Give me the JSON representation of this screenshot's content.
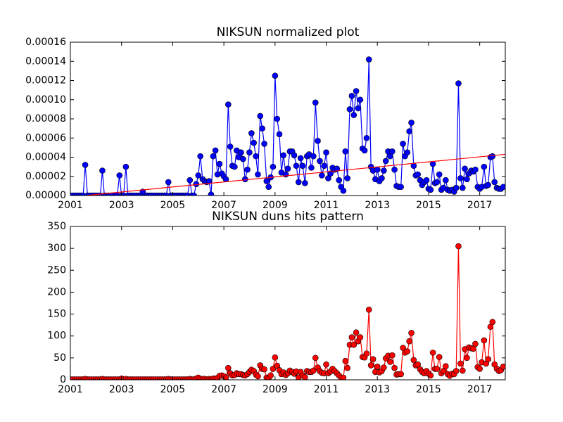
{
  "chart_data": [
    {
      "type": "line",
      "title": "NIKSUN normalized plot",
      "xlim": [
        2001,
        2018
      ],
      "xticks": [
        2001,
        2003,
        2005,
        2007,
        2009,
        2011,
        2013,
        2015,
        2017
      ],
      "ylim": [
        0,
        0.00016
      ],
      "yticks": [
        {
          "value": 0,
          "label": "0.00000"
        },
        {
          "value": 2e-05,
          "label": "0.00002"
        },
        {
          "value": 4e-05,
          "label": "0.00004"
        },
        {
          "value": 6e-05,
          "label": "0.00006"
        },
        {
          "value": 8e-05,
          "label": "0.00008"
        },
        {
          "value": 0.0001,
          "label": "0.00010"
        },
        {
          "value": 0.00012,
          "label": "0.00012"
        },
        {
          "value": 0.00014,
          "label": "0.00014"
        },
        {
          "value": 0.00016,
          "label": "0.00016"
        }
      ],
      "series": [
        {
          "color": "#0000ff",
          "marker": "o",
          "x": [
            2001,
            2001.08,
            2001.17,
            2001.25,
            2001.33,
            2001.42,
            2001.5,
            2001.58,
            2001.67,
            2001.75,
            2001.83,
            2001.92,
            2002,
            2002.08,
            2002.17,
            2002.25,
            2002.33,
            2002.42,
            2002.5,
            2002.58,
            2002.67,
            2002.75,
            2002.83,
            2002.92,
            2003,
            2003.08,
            2003.17,
            2003.25,
            2003.33,
            2003.42,
            2003.5,
            2003.58,
            2003.67,
            2003.75,
            2003.83,
            2003.92,
            2004,
            2004.08,
            2004.17,
            2004.25,
            2004.33,
            2004.42,
            2004.5,
            2004.58,
            2004.67,
            2004.75,
            2004.83,
            2004.92,
            2005,
            2005.08,
            2005.17,
            2005.25,
            2005.33,
            2005.42,
            2005.5,
            2005.58,
            2005.67,
            2005.75,
            2005.83,
            2005.92,
            2006,
            2006.08,
            2006.17,
            2006.25,
            2006.33,
            2006.42,
            2006.5,
            2006.58,
            2006.67,
            2006.75,
            2006.83,
            2006.92,
            2007,
            2007.08,
            2007.17,
            2007.25,
            2007.33,
            2007.42,
            2007.5,
            2007.58,
            2007.67,
            2007.75,
            2007.83,
            2007.92,
            2008,
            2008.08,
            2008.17,
            2008.25,
            2008.33,
            2008.42,
            2008.5,
            2008.58,
            2008.67,
            2008.75,
            2008.83,
            2008.92,
            2009,
            2009.08,
            2009.17,
            2009.25,
            2009.33,
            2009.42,
            2009.5,
            2009.58,
            2009.67,
            2009.75,
            2009.83,
            2009.92,
            2010,
            2010.08,
            2010.17,
            2010.25,
            2010.33,
            2010.42,
            2010.5,
            2010.58,
            2010.67,
            2010.75,
            2010.83,
            2010.92,
            2011,
            2011.08,
            2011.17,
            2011.25,
            2011.33,
            2011.42,
            2011.5,
            2011.58,
            2011.67,
            2011.75,
            2011.83,
            2011.92,
            2012,
            2012.08,
            2012.17,
            2012.25,
            2012.33,
            2012.42,
            2012.5,
            2012.58,
            2012.67,
            2012.75,
            2012.83,
            2012.92,
            2013,
            2013.08,
            2013.17,
            2013.25,
            2013.33,
            2013.42,
            2013.5,
            2013.58,
            2013.67,
            2013.75,
            2013.83,
            2013.92,
            2014,
            2014.08,
            2014.17,
            2014.25,
            2014.33,
            2014.42,
            2014.5,
            2014.58,
            2014.67,
            2014.75,
            2014.83,
            2014.92,
            2015,
            2015.08,
            2015.17,
            2015.25,
            2015.33,
            2015.42,
            2015.5,
            2015.58,
            2015.67,
            2015.75,
            2015.83,
            2015.92,
            2016,
            2016.08,
            2016.17,
            2016.25,
            2016.33,
            2016.42,
            2016.5,
            2016.58,
            2016.67,
            2016.75,
            2016.83,
            2016.92,
            2017,
            2017.08,
            2017.17,
            2017.25,
            2017.33,
            2017.42,
            2017.5,
            2017.58,
            2017.67,
            2017.75,
            2017.83,
            2017.92
          ],
          "values": [
            0,
            0,
            0,
            0,
            0,
            0,
            0,
            3.2e-05,
            0,
            0,
            0,
            0,
            0,
            0,
            0,
            2.6e-05,
            0,
            0,
            0,
            0,
            0,
            0,
            0,
            2.1e-05,
            0,
            0,
            3e-05,
            0,
            0,
            0,
            0,
            0,
            0,
            0,
            4e-06,
            0,
            0,
            0,
            0,
            0,
            0,
            0,
            0,
            0,
            0,
            0,
            1.4e-05,
            0,
            0,
            0,
            0,
            0,
            0,
            0,
            0,
            0,
            1.6e-05,
            0,
            0,
            1.2e-05,
            2.1e-05,
            4.1e-05,
            1.7e-05,
            1.5e-05,
            1.4e-05,
            1.5e-05,
            1e-06,
            4.1e-05,
            4.7e-05,
            2.2e-05,
            3.3e-05,
            2.3e-05,
            2e-05,
            1.7e-05,
            9.5e-05,
            5.1e-05,
            3.1e-05,
            3e-05,
            4.7e-05,
            4e-05,
            4.5e-05,
            3.8e-05,
            1.7e-05,
            2.7e-05,
            4.5e-05,
            6.5e-05,
            5.5e-05,
            4.1e-05,
            2.2e-05,
            8.3e-05,
            7e-05,
            5.4e-05,
            1.5e-05,
            9e-06,
            1.9e-05,
            3e-05,
            0.000125,
            8e-05,
            6.4e-05,
            2.4e-05,
            4.2e-05,
            2.2e-05,
            2.8e-05,
            4.6e-05,
            4.6e-05,
            4.2e-05,
            3.1e-05,
            1.4e-05,
            3.9e-05,
            3.1e-05,
            1.3e-05,
            4.1e-05,
            4.3e-05,
            2.9e-05,
            4.1e-05,
            9.7e-05,
            5.7e-05,
            3.6e-05,
            2.1e-05,
            3.1e-05,
            4.5e-05,
            1.8e-05,
            2.3e-05,
            2.9e-05,
            2.7e-05,
            2.8e-05,
            1.6e-05,
            9e-06,
            5e-06,
            4.6e-05,
            1.8e-05,
            9e-05,
            0.000104,
            8.4e-05,
            0.000109,
            9.1e-05,
            0.0001,
            4.9e-05,
            4.7e-05,
            6e-05,
            0.000142,
            3e-05,
            2.6e-05,
            1.7e-05,
            2.7e-05,
            1.5e-05,
            1.8e-05,
            2.6e-05,
            3.6e-05,
            4.6e-05,
            4.1e-05,
            4.6e-05,
            2.7e-05,
            1e-05,
            9e-06,
            9e-06,
            5.4e-05,
            4.1e-05,
            4.5e-05,
            6.7e-05,
            7.6e-05,
            3.1e-05,
            2.1e-05,
            2.2e-05,
            1.6e-05,
            1.1e-05,
            1.4e-05,
            1.6e-05,
            7e-06,
            6e-06,
            3.3e-05,
            1.3e-05,
            1.4e-05,
            2.2e-05,
            6e-06,
            8e-06,
            1.6e-05,
            6e-06,
            5e-06,
            6e-06,
            4e-06,
            8e-06,
            0.000117,
            1.8e-05,
            8e-06,
            2.8e-05,
            1.7e-05,
            2.3e-05,
            2.6e-05,
            2.5e-05,
            2.7e-05,
            9e-06,
            7e-06,
            9e-06,
            3e-05,
            1e-05,
            1.1e-05,
            4e-05,
            4.1e-05,
            1.4e-05,
            8e-06,
            7e-06,
            7e-06,
            9e-06
          ]
        },
        {
          "color": "#ff0000",
          "x": [
            2001.6,
            2018
          ],
          "values": [
            0,
            4.3e-05
          ]
        }
      ]
    },
    {
      "type": "line",
      "title": "NIKSUN duns hits pattern",
      "xlim": [
        2001,
        2018
      ],
      "xticks": [
        2001,
        2003,
        2005,
        2007,
        2009,
        2011,
        2013,
        2015,
        2017
      ],
      "ylim": [
        0,
        350
      ],
      "yticks": [
        0,
        50,
        100,
        150,
        200,
        250,
        300,
        350
      ],
      "series": [
        {
          "color": "#ff0000",
          "marker": "o",
          "x": [
            2001,
            2001.08,
            2001.17,
            2001.25,
            2001.33,
            2001.42,
            2001.5,
            2001.58,
            2001.67,
            2001.75,
            2001.83,
            2001.92,
            2002,
            2002.08,
            2002.17,
            2002.25,
            2002.33,
            2002.42,
            2002.5,
            2002.58,
            2002.67,
            2002.75,
            2002.83,
            2002.92,
            2003,
            2003.08,
            2003.17,
            2003.25,
            2003.33,
            2003.42,
            2003.5,
            2003.58,
            2003.67,
            2003.75,
            2003.83,
            2003.92,
            2004,
            2004.08,
            2004.17,
            2004.25,
            2004.33,
            2004.42,
            2004.5,
            2004.58,
            2004.67,
            2004.75,
            2004.83,
            2004.92,
            2005,
            2005.08,
            2005.17,
            2005.25,
            2005.33,
            2005.42,
            2005.5,
            2005.58,
            2005.67,
            2005.75,
            2005.83,
            2005.92,
            2006,
            2006.08,
            2006.17,
            2006.25,
            2006.33,
            2006.42,
            2006.5,
            2006.58,
            2006.67,
            2006.75,
            2006.83,
            2006.92,
            2007,
            2007.08,
            2007.17,
            2007.25,
            2007.33,
            2007.42,
            2007.5,
            2007.58,
            2007.67,
            2007.75,
            2007.83,
            2007.92,
            2008,
            2008.08,
            2008.17,
            2008.25,
            2008.33,
            2008.42,
            2008.5,
            2008.58,
            2008.67,
            2008.75,
            2008.83,
            2008.92,
            2009,
            2009.08,
            2009.17,
            2009.25,
            2009.33,
            2009.42,
            2009.5,
            2009.58,
            2009.67,
            2009.75,
            2009.83,
            2009.92,
            2010,
            2010.08,
            2010.17,
            2010.25,
            2010.33,
            2010.42,
            2010.5,
            2010.58,
            2010.67,
            2010.75,
            2010.83,
            2010.92,
            2011,
            2011.08,
            2011.17,
            2011.25,
            2011.33,
            2011.42,
            2011.5,
            2011.58,
            2011.67,
            2011.75,
            2011.83,
            2011.92,
            2012,
            2012.08,
            2012.17,
            2012.25,
            2012.33,
            2012.42,
            2012.5,
            2012.58,
            2012.67,
            2012.75,
            2012.83,
            2012.92,
            2013,
            2013.08,
            2013.17,
            2013.25,
            2013.33,
            2013.42,
            2013.5,
            2013.58,
            2013.67,
            2013.75,
            2013.83,
            2013.92,
            2014,
            2014.08,
            2014.17,
            2014.25,
            2014.33,
            2014.42,
            2014.5,
            2014.58,
            2014.67,
            2014.75,
            2014.83,
            2014.92,
            2015,
            2015.08,
            2015.17,
            2015.25,
            2015.33,
            2015.42,
            2015.5,
            2015.58,
            2015.67,
            2015.75,
            2015.83,
            2015.92,
            2016,
            2016.08,
            2016.17,
            2016.25,
            2016.33,
            2016.42,
            2016.5,
            2016.58,
            2016.67,
            2016.75,
            2016.83,
            2016.92,
            2017,
            2017.08,
            2017.17,
            2017.25,
            2017.33,
            2017.42,
            2017.5,
            2017.58,
            2017.67,
            2017.75,
            2017.83,
            2017.92
          ],
          "values": [
            1,
            1,
            1,
            1,
            1,
            1,
            1,
            2,
            1,
            1,
            1,
            1,
            1,
            1,
            1,
            2,
            1,
            1,
            1,
            1,
            1,
            1,
            1,
            1,
            3,
            1,
            2,
            1,
            1,
            1,
            1,
            1,
            1,
            1,
            1,
            1,
            1,
            1,
            1,
            1,
            1,
            1,
            1,
            1,
            1,
            1,
            2,
            1,
            1,
            1,
            1,
            1,
            1,
            1,
            1,
            1,
            2,
            1,
            1,
            3,
            5,
            2,
            2,
            2,
            1,
            2,
            1,
            3,
            3,
            4,
            9,
            10,
            8,
            5,
            27,
            15,
            10,
            11,
            15,
            13,
            13,
            11,
            10,
            13,
            18,
            23,
            20,
            12,
            8,
            33,
            25,
            24,
            5,
            4,
            10,
            25,
            51,
            32,
            22,
            13,
            17,
            11,
            15,
            21,
            18,
            14,
            19,
            5,
            18,
            10,
            6,
            20,
            18,
            18,
            21,
            50,
            28,
            20,
            16,
            15,
            35,
            15,
            19,
            25,
            20,
            15,
            10,
            5,
            5,
            43,
            27,
            80,
            97,
            80,
            108,
            88,
            97,
            52,
            51,
            60,
            160,
            33,
            47,
            18,
            30,
            17,
            20,
            28,
            49,
            55,
            41,
            56,
            27,
            12,
            13,
            13,
            73,
            62,
            65,
            88,
            107,
            45,
            33,
            35,
            24,
            18,
            15,
            20,
            14,
            10,
            62,
            25,
            25,
            52,
            15,
            20,
            31,
            13,
            9,
            14,
            13,
            20,
            305,
            37,
            21,
            70,
            50,
            74,
            72,
            71,
            82,
            29,
            25,
            40,
            90,
            37,
            47,
            121,
            132,
            35,
            25,
            20,
            22,
            30
          ]
        }
      ]
    }
  ]
}
